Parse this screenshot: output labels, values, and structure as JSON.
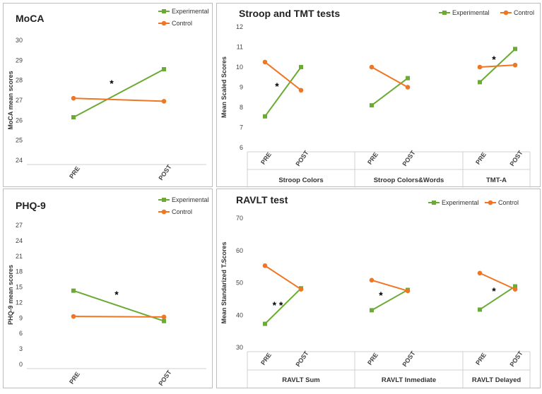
{
  "colors": {
    "experimental": "#6aaa35",
    "control": "#ee7624"
  },
  "legend": {
    "experimental": "Experimental",
    "control": "Control"
  },
  "chart_data": [
    {
      "id": "moca",
      "type": "line",
      "title": "MoCA",
      "ylabel": "MoCA mean scores",
      "ylim": [
        24,
        30
      ],
      "yticks": [
        "24",
        "25",
        "26",
        "27",
        "28",
        "29",
        "30"
      ],
      "groups": [
        {
          "name": "",
          "categories": [
            "PRE",
            "POST"
          ],
          "series": [
            {
              "name": "Experimental",
              "values": [
                26.15,
                28.55
              ]
            },
            {
              "name": "Control",
              "values": [
                27.1,
                26.95
              ]
            }
          ],
          "annotation": "*"
        }
      ]
    },
    {
      "id": "stroop",
      "type": "line",
      "title": "Stroop and TMT tests",
      "ylabel": "Mean Scaled Scores",
      "ylim": [
        6,
        12
      ],
      "yticks": [
        "6",
        "7",
        "8",
        "9",
        "10",
        "11",
        "12"
      ],
      "groups": [
        {
          "name": "Stroop Colors",
          "categories": [
            "PRE",
            "POST"
          ],
          "series": [
            {
              "name": "Experimental",
              "values": [
                7.55,
                10.0
              ]
            },
            {
              "name": "Control",
              "values": [
                10.25,
                8.85
              ]
            }
          ],
          "annotation": "*"
        },
        {
          "name": "Stroop Colors&Words",
          "categories": [
            "PRE",
            "POST"
          ],
          "series": [
            {
              "name": "Experimental",
              "values": [
                8.1,
                9.45
              ]
            },
            {
              "name": "Control",
              "values": [
                10.0,
                9.0
              ]
            }
          ]
        },
        {
          "name": "TMT-A",
          "categories": [
            "PRE",
            "POST"
          ],
          "series": [
            {
              "name": "Experimental",
              "values": [
                9.25,
                10.9
              ]
            },
            {
              "name": "Control",
              "values": [
                10.0,
                10.1
              ]
            }
          ],
          "annotation": "*"
        }
      ]
    },
    {
      "id": "phq9",
      "type": "line",
      "title": "PHQ-9",
      "ylabel": "PHQ-9 mean scores",
      "ylim": [
        0,
        27
      ],
      "yticks": [
        "0",
        "3",
        "6",
        "9",
        "12",
        "15",
        "18",
        "21",
        "24",
        "27"
      ],
      "groups": [
        {
          "name": "",
          "categories": [
            "PRE",
            "POST"
          ],
          "series": [
            {
              "name": "Experimental",
              "values": [
                14.3,
                8.4
              ]
            },
            {
              "name": "Control",
              "values": [
                9.3,
                9.2
              ]
            }
          ],
          "annotation": "*"
        }
      ]
    },
    {
      "id": "ravlt",
      "type": "line",
      "title": "RAVLT test",
      "ylabel": "Mean Standarized T.Scores",
      "ylim": [
        30,
        70
      ],
      "yticks": [
        "30",
        "40",
        "50",
        "60",
        "70"
      ],
      "groups": [
        {
          "name": "RAVLT Sum",
          "categories": [
            "PRE",
            "POST"
          ],
          "series": [
            {
              "name": "Experimental",
              "values": [
                37.3,
                48.3
              ]
            },
            {
              "name": "Control",
              "values": [
                55.3,
                48.0
              ]
            }
          ],
          "annotation": "* *"
        },
        {
          "name": "RAVLT Inmediate",
          "categories": [
            "PRE",
            "POST"
          ],
          "series": [
            {
              "name": "Experimental",
              "values": [
                41.5,
                47.8
              ]
            },
            {
              "name": "Control",
              "values": [
                50.8,
                47.5
              ]
            }
          ],
          "annotation": "*"
        },
        {
          "name": "RAVLT Delayed",
          "categories": [
            "PRE",
            "POST"
          ],
          "series": [
            {
              "name": "Experimental",
              "values": [
                41.7,
                48.9
              ]
            },
            {
              "name": "Control",
              "values": [
                53.0,
                48.0
              ]
            }
          ],
          "annotation": "*"
        }
      ]
    }
  ]
}
